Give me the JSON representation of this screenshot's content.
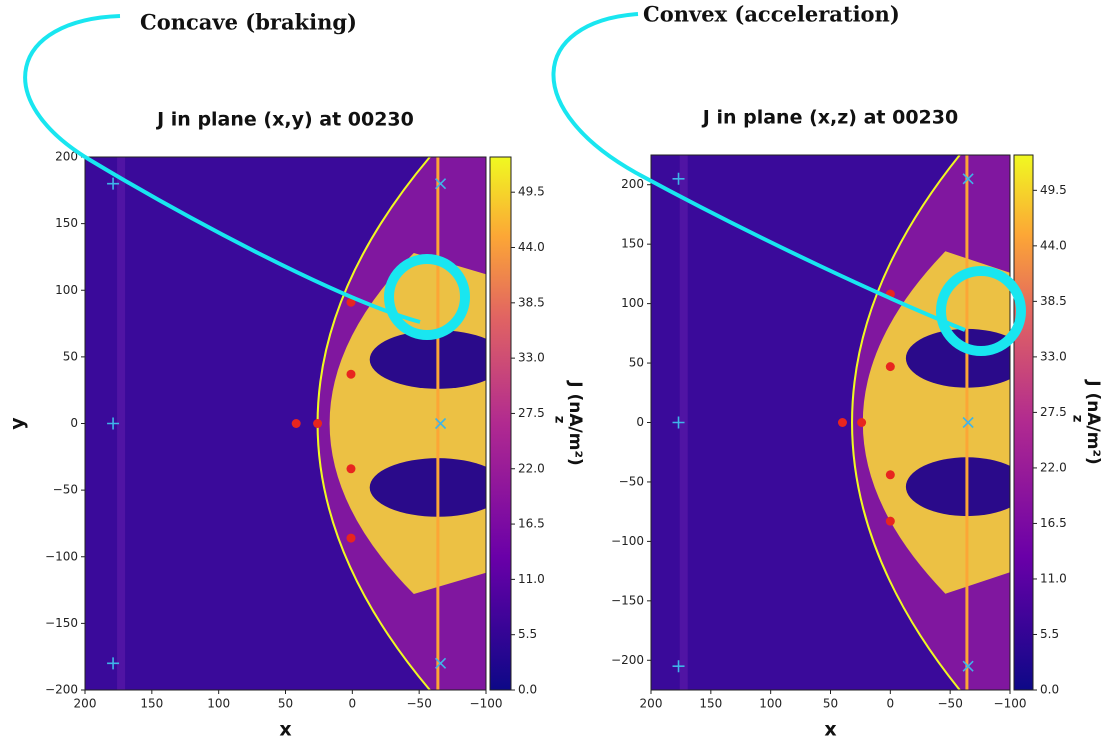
{
  "annotations": [
    "Concave (braking)",
    "Convex (acceleration)"
  ],
  "chart_data": [
    {
      "type": "heatmap",
      "title": "J in plane (x,y) at 00230",
      "x_label": "x",
      "y_label": "y",
      "xlim": [
        200,
        -100
      ],
      "ylim": [
        -200,
        200
      ],
      "xticks": [
        200,
        150,
        100,
        50,
        0,
        {
          "value": -50,
          "label": "−50"
        },
        {
          "value": -100,
          "label": "−100"
        }
      ],
      "yticks": [
        {
          "value": -200,
          "label": "−200"
        },
        {
          "value": -150,
          "label": "−150"
        },
        {
          "value": -100,
          "label": "−100"
        },
        {
          "value": -50,
          "label": "−50"
        },
        0,
        50,
        100,
        150,
        200
      ],
      "colorbar": {
        "label": "J (nA/m²)",
        "label_subscript": "z",
        "lim": [
          0,
          53
        ],
        "ticks": [
          {
            "value": 0,
            "label": "0.0"
          },
          5.5,
          {
            "value": 11,
            "label": "11.0"
          },
          16.5,
          {
            "value": 22,
            "label": "22.0"
          },
          27.5,
          {
            "value": 33,
            "label": "33.0"
          },
          38.5,
          {
            "value": 44,
            "label": "44.0"
          },
          49.5
        ]
      },
      "points": [
        {
          "marker": "dot",
          "color": "#e8251f",
          "x": [
            42,
            26,
            1,
            1,
            1,
            1
          ],
          "y": [
            0,
            0,
            37,
            -34,
            91,
            -86
          ]
        },
        {
          "marker": "plus",
          "color": "#3fb5e8",
          "x": [
            179,
            179,
            179
          ],
          "y": [
            180,
            0,
            -180
          ]
        },
        {
          "marker": "cross",
          "color": "#3fb5e8",
          "x": [
            -66,
            -66,
            -66
          ],
          "y": [
            180,
            0,
            -180
          ]
        }
      ]
    },
    {
      "type": "heatmap",
      "title": "J in plane (x,z) at 00230",
      "x_label": "x",
      "xlim": [
        200,
        -100
      ],
      "ylim": [
        -225,
        225
      ],
      "xticks": [
        200,
        150,
        100,
        50,
        0,
        {
          "value": -50,
          "label": "−50"
        },
        {
          "value": -100,
          "label": "−100"
        }
      ],
      "yticks": [
        {
          "value": -200,
          "label": "−200"
        },
        {
          "value": -150,
          "label": "−150"
        },
        {
          "value": -100,
          "label": "−100"
        },
        {
          "value": -50,
          "label": "−50"
        },
        0,
        50,
        100,
        150,
        200
      ],
      "colorbar": {
        "label": "J (nA/m²)",
        "label_subscript": "z",
        "lim": [
          0,
          53
        ],
        "ticks": [
          {
            "value": 0,
            "label": "0.0"
          },
          5.5,
          {
            "value": 11,
            "label": "11.0"
          },
          16.5,
          {
            "value": 22,
            "label": "22.0"
          },
          27.5,
          {
            "value": 33,
            "label": "33.0"
          },
          38.5,
          {
            "value": 44,
            "label": "44.0"
          },
          49.5
        ]
      },
      "points": [
        {
          "marker": "dot",
          "color": "#e8251f",
          "x": [
            40,
            24,
            0,
            0,
            0,
            0
          ],
          "y": [
            0,
            0,
            47,
            -44,
            108,
            -83
          ]
        },
        {
          "marker": "plus",
          "color": "#3fb5e8",
          "x": [
            177,
            177,
            177
          ],
          "y": [
            205,
            0,
            -205
          ]
        },
        {
          "marker": "cross",
          "color": "#3fb5e8",
          "x": [
            -65,
            -65,
            -65
          ],
          "y": [
            205,
            0,
            -205
          ]
        }
      ]
    }
  ]
}
